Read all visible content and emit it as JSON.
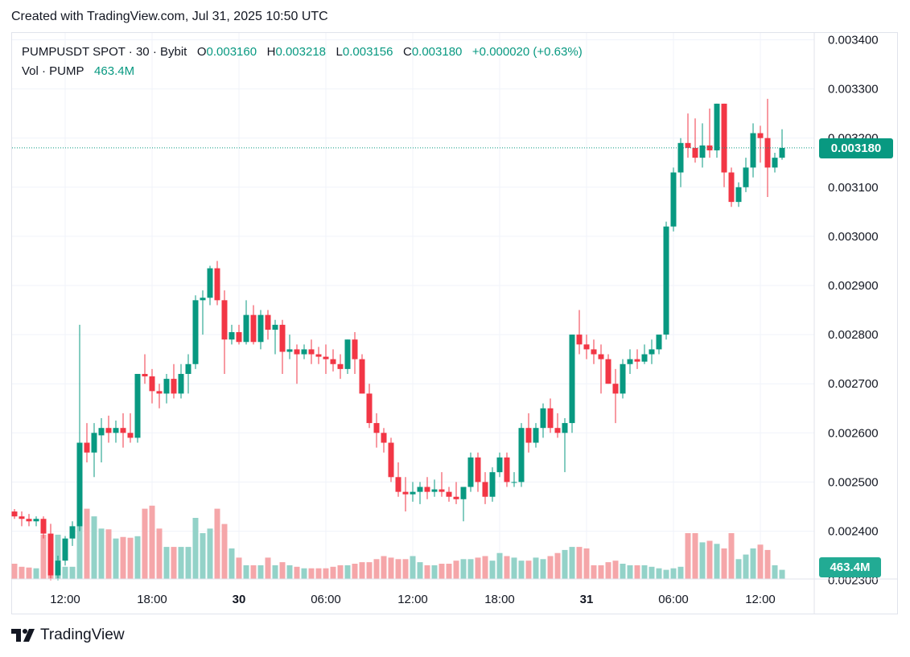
{
  "header": {
    "created": "Created with TradingView.com, Jul 31, 2025 10:50 UTC"
  },
  "legend": {
    "symbol": "PUMPUSDT SPOT · 30 · Bybit",
    "o_label": "O",
    "o_value": "0.003160",
    "h_label": "H",
    "h_value": "0.003218",
    "l_label": "L",
    "l_value": "0.003156",
    "c_label": "C",
    "c_value": "0.003180",
    "change": "+0.000020 (+0.63%)",
    "vol_label": "Vol · PUMP",
    "vol_value": "463.4M"
  },
  "badges": {
    "last_price": "0.003180",
    "last_volume": "463.4M"
  },
  "brand": {
    "name": "TradingView",
    "logo": "tradingview-logo-icon"
  },
  "colors": {
    "up": "#089981",
    "down": "#f23645",
    "vol_up": "#93d2c8",
    "vol_down": "#f5a6a9",
    "grid": "#f0f3fa",
    "axis_text": "#131722"
  },
  "chart_data": {
    "type": "candlestick",
    "interval": "30",
    "grid": true,
    "ylim": [
      0.00238,
      0.0034
    ],
    "y_ticks": [
      "0.003400",
      "0.003300",
      "0.003200",
      "0.003100",
      "0.003000",
      "0.002900",
      "0.002800",
      "0.002700",
      "0.002600",
      "0.002500",
      "0.002400",
      "0.002300"
    ],
    "x_ticks": [
      {
        "label": "12:00",
        "index": 7
      },
      {
        "label": "18:00",
        "index": 19
      },
      {
        "label": "30",
        "index": 31
      },
      {
        "label": "06:00",
        "index": 43
      },
      {
        "label": "12:00",
        "index": 55
      },
      {
        "label": "18:00",
        "index": 67
      },
      {
        "label": "31",
        "index": 79
      },
      {
        "label": "06:00",
        "index": 91
      },
      {
        "label": "12:00",
        "index": 103
      }
    ],
    "last_price": 0.00318,
    "candles": [
      [
        0.00244,
        0.002445,
        0.002425,
        0.00243
      ],
      [
        0.00243,
        0.00244,
        0.00241,
        0.002425
      ],
      [
        0.002425,
        0.002435,
        0.00241,
        0.00242
      ],
      [
        0.00242,
        0.00243,
        0.00241,
        0.002425
      ],
      [
        0.002425,
        0.00243,
        0.002385,
        0.002395
      ],
      [
        0.002395,
        0.002415,
        0.0023,
        0.00231
      ],
      [
        0.00231,
        0.00235,
        0.0023,
        0.00234
      ],
      [
        0.00234,
        0.00239,
        0.00233,
        0.002385
      ],
      [
        0.002385,
        0.00242,
        0.00237,
        0.00241
      ],
      [
        0.00241,
        0.00282,
        0.0024,
        0.00258
      ],
      [
        0.00258,
        0.00262,
        0.00254,
        0.00256
      ],
      [
        0.00256,
        0.00262,
        0.00251,
        0.0026
      ],
      [
        0.002595,
        0.00263,
        0.00254,
        0.00261
      ],
      [
        0.00261,
        0.002635,
        0.00258,
        0.0026
      ],
      [
        0.0026,
        0.002625,
        0.00258,
        0.00261
      ],
      [
        0.00261,
        0.00264,
        0.00257,
        0.0026
      ],
      [
        0.0026,
        0.00264,
        0.00258,
        0.00259
      ],
      [
        0.00259,
        0.00272,
        0.00258,
        0.00272
      ],
      [
        0.00272,
        0.00276,
        0.0027,
        0.002715
      ],
      [
        0.002715,
        0.00273,
        0.00266,
        0.002685
      ],
      [
        0.002685,
        0.0027,
        0.00265,
        0.00268
      ],
      [
        0.00268,
        0.00272,
        0.00266,
        0.00271
      ],
      [
        0.00271,
        0.00274,
        0.00267,
        0.00268
      ],
      [
        0.00268,
        0.00274,
        0.00267,
        0.00272
      ],
      [
        0.00272,
        0.00276,
        0.00268,
        0.00274
      ],
      [
        0.00274,
        0.00288,
        0.00273,
        0.00287
      ],
      [
        0.00287,
        0.00289,
        0.0028,
        0.002875
      ],
      [
        0.002875,
        0.00294,
        0.00286,
        0.002935
      ],
      [
        0.002935,
        0.00295,
        0.00286,
        0.00287
      ],
      [
        0.00287,
        0.00289,
        0.00272,
        0.00279
      ],
      [
        0.00279,
        0.00282,
        0.00278,
        0.002805
      ],
      [
        0.002805,
        0.00282,
        0.00278,
        0.002785
      ],
      [
        0.002785,
        0.00287,
        0.00278,
        0.00284
      ],
      [
        0.00284,
        0.00286,
        0.00278,
        0.002785
      ],
      [
        0.002785,
        0.00285,
        0.00277,
        0.00284
      ],
      [
        0.00284,
        0.00285,
        0.00279,
        0.00281
      ],
      [
        0.00281,
        0.00283,
        0.00276,
        0.00282
      ],
      [
        0.00282,
        0.00283,
        0.00272,
        0.002765
      ],
      [
        0.002765,
        0.0028,
        0.00275,
        0.00277
      ],
      [
        0.00277,
        0.00278,
        0.0027,
        0.00276
      ],
      [
        0.00276,
        0.00278,
        0.00275,
        0.00277
      ],
      [
        0.00277,
        0.00279,
        0.00274,
        0.00276
      ],
      [
        0.00276,
        0.002775,
        0.00274,
        0.002755
      ],
      [
        0.002755,
        0.00278,
        0.00272,
        0.00275
      ],
      [
        0.00275,
        0.00277,
        0.002725,
        0.00274
      ],
      [
        0.00274,
        0.00276,
        0.00271,
        0.00273
      ],
      [
        0.00273,
        0.00279,
        0.00272,
        0.00279
      ],
      [
        0.00279,
        0.002805,
        0.00272,
        0.00275
      ],
      [
        0.00275,
        0.00276,
        0.00268,
        0.00268
      ],
      [
        0.00268,
        0.0027,
        0.00261,
        0.00262
      ],
      [
        0.00262,
        0.00264,
        0.00257,
        0.0026
      ],
      [
        0.0026,
        0.00261,
        0.00256,
        0.00258
      ],
      [
        0.00258,
        0.00259,
        0.0025,
        0.00251
      ],
      [
        0.00251,
        0.00254,
        0.00247,
        0.00248
      ],
      [
        0.00248,
        0.00251,
        0.00244,
        0.002475
      ],
      [
        0.002475,
        0.0025,
        0.00246,
        0.00248
      ],
      [
        0.00248,
        0.0025,
        0.002455,
        0.00249
      ],
      [
        0.00249,
        0.00251,
        0.002465,
        0.00248
      ],
      [
        0.00248,
        0.002505,
        0.00247,
        0.002485
      ],
      [
        0.002485,
        0.00252,
        0.00247,
        0.00248
      ],
      [
        0.00248,
        0.00249,
        0.00246,
        0.00247
      ],
      [
        0.00247,
        0.0025,
        0.002455,
        0.002465
      ],
      [
        0.002465,
        0.00249,
        0.00242,
        0.00249
      ],
      [
        0.00249,
        0.00256,
        0.00248,
        0.00255
      ],
      [
        0.00255,
        0.00256,
        0.00248,
        0.0025
      ],
      [
        0.0025,
        0.00252,
        0.002455,
        0.00247
      ],
      [
        0.00247,
        0.00253,
        0.00246,
        0.00252
      ],
      [
        0.00252,
        0.00256,
        0.00251,
        0.00255
      ],
      [
        0.00255,
        0.00256,
        0.00249,
        0.0025
      ],
      [
        0.0025,
        0.00252,
        0.00249,
        0.0025
      ],
      [
        0.0025,
        0.00262,
        0.00249,
        0.00261
      ],
      [
        0.00261,
        0.00264,
        0.00256,
        0.00258
      ],
      [
        0.00258,
        0.00262,
        0.00257,
        0.00261
      ],
      [
        0.00261,
        0.00266,
        0.00259,
        0.00265
      ],
      [
        0.00265,
        0.00267,
        0.0026,
        0.00261
      ],
      [
        0.00261,
        0.00264,
        0.00259,
        0.0026
      ],
      [
        0.0026,
        0.00263,
        0.00252,
        0.00262
      ],
      [
        0.00262,
        0.0028,
        0.0026,
        0.0028
      ],
      [
        0.0028,
        0.00285,
        0.00276,
        0.00278
      ],
      [
        0.00278,
        0.0028,
        0.00275,
        0.00277
      ],
      [
        0.00277,
        0.00279,
        0.00274,
        0.00276
      ],
      [
        0.00276,
        0.00278,
        0.00268,
        0.00275
      ],
      [
        0.00275,
        0.00276,
        0.0027,
        0.0027
      ],
      [
        0.0027,
        0.00273,
        0.00262,
        0.00268
      ],
      [
        0.00268,
        0.00275,
        0.00267,
        0.00274
      ],
      [
        0.00274,
        0.00277,
        0.00272,
        0.00275
      ],
      [
        0.00275,
        0.00277,
        0.00273,
        0.002745
      ],
      [
        0.002745,
        0.00278,
        0.00274,
        0.00276
      ],
      [
        0.00276,
        0.00279,
        0.00274,
        0.00277
      ],
      [
        0.00277,
        0.00279,
        0.00276,
        0.0028
      ],
      [
        0.0028,
        0.00303,
        0.00279,
        0.00302
      ],
      [
        0.00302,
        0.00314,
        0.00301,
        0.00313
      ],
      [
        0.00313,
        0.0032,
        0.0031,
        0.00319
      ],
      [
        0.00319,
        0.00325,
        0.00316,
        0.00318
      ],
      [
        0.00318,
        0.00324,
        0.00315,
        0.00316
      ],
      [
        0.00316,
        0.00323,
        0.00314,
        0.003185
      ],
      [
        0.003185,
        0.00326,
        0.00316,
        0.003175
      ],
      [
        0.003175,
        0.00327,
        0.00316,
        0.00327
      ],
      [
        0.00327,
        0.00327,
        0.0031,
        0.00313
      ],
      [
        0.00313,
        0.00314,
        0.00306,
        0.00307
      ],
      [
        0.00307,
        0.00311,
        0.00306,
        0.0031
      ],
      [
        0.0031,
        0.00316,
        0.00309,
        0.00314
      ],
      [
        0.00314,
        0.00323,
        0.00312,
        0.00321
      ],
      [
        0.00321,
        0.003225,
        0.00315,
        0.0032
      ],
      [
        0.0032,
        0.00328,
        0.00308,
        0.00314
      ],
      [
        0.00314,
        0.00317,
        0.00313,
        0.00316
      ],
      [
        0.00316,
        0.003218,
        0.003156,
        0.00318
      ]
    ],
    "volumes": [
      20,
      16,
      15,
      14,
      58,
      58,
      58,
      16,
      16,
      75,
      92,
      82,
      66,
      65,
      53,
      55,
      54,
      56,
      92,
      96,
      66,
      42,
      42,
      42,
      42,
      80,
      60,
      66,
      92,
      72,
      40,
      28,
      18,
      18,
      18,
      28,
      18,
      22,
      18,
      16,
      14,
      14,
      14,
      14,
      16,
      18,
      18,
      20,
      22,
      22,
      26,
      30,
      28,
      26,
      26,
      30,
      22,
      18,
      18,
      20,
      20,
      24,
      26,
      26,
      28,
      30,
      24,
      34,
      30,
      28,
      24,
      24,
      28,
      26,
      30,
      34,
      38,
      42,
      42,
      40,
      18,
      18,
      22,
      24,
      20,
      18,
      18,
      18,
      16,
      14,
      12,
      14,
      16,
      60,
      60,
      48,
      50,
      46,
      40,
      60,
      26,
      32,
      40,
      45,
      38,
      18,
      12
    ]
  }
}
